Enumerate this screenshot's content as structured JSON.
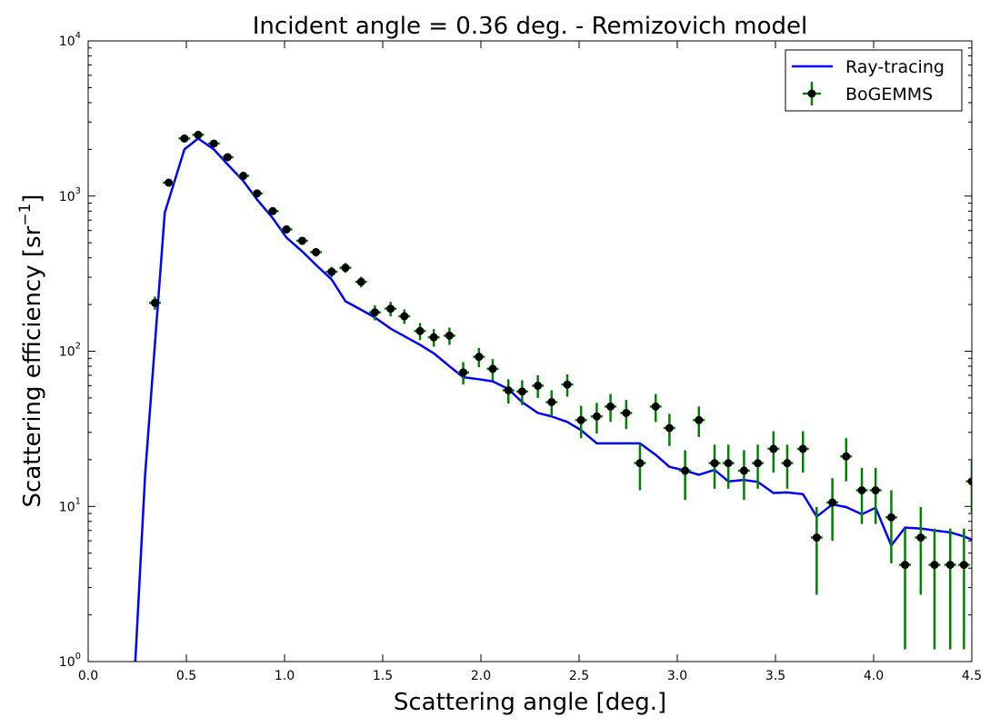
{
  "chart_data": {
    "type": "line",
    "title": "Incident angle = 0.36 deg. - Remizovich model",
    "xlabel": "Scattering angle [deg.]",
    "ylabel": "Scattering efficiency [sr",
    "ylabel_sup": "−1",
    "ylabel_close": "]",
    "xlim": [
      0.0,
      4.5
    ],
    "ylim": [
      1,
      10000
    ],
    "yscale": "log",
    "x_ticks": [
      0.0,
      0.5,
      1.0,
      1.5,
      2.0,
      2.5,
      3.0,
      3.5,
      4.0,
      4.5
    ],
    "x_tick_labels": [
      "0.0",
      "0.5",
      "1.0",
      "1.5",
      "2.0",
      "2.5",
      "3.0",
      "3.5",
      "4.0",
      "4.5"
    ],
    "y_ticks": [
      1,
      10,
      100,
      1000,
      10000
    ],
    "y_tick_base": [
      "10",
      "10",
      "10",
      "10",
      "10"
    ],
    "y_tick_exp": [
      "0",
      "1",
      "2",
      "3",
      "4"
    ],
    "legend_position": "top-right",
    "series": [
      {
        "name": "Ray-tracing",
        "kind": "line",
        "color": "#0000ff",
        "x": [
          0.24,
          0.29,
          0.39,
          0.49,
          0.56,
          0.64,
          0.71,
          0.79,
          0.86,
          0.94,
          1.01,
          1.09,
          1.16,
          1.24,
          1.31,
          1.39,
          1.46,
          1.54,
          1.61,
          1.69,
          1.76,
          1.84,
          1.91,
          1.99,
          2.06,
          2.14,
          2.21,
          2.29,
          2.36,
          2.44,
          2.51,
          2.59,
          2.66,
          2.74,
          2.81,
          2.89,
          2.96,
          3.04,
          3.11,
          3.19,
          3.26,
          3.34,
          3.41,
          3.49,
          3.56,
          3.64,
          3.71,
          3.79,
          3.86,
          3.94,
          4.01,
          4.09,
          4.16,
          4.24,
          4.31,
          4.39,
          4.46,
          4.5
        ],
        "y": [
          1.0,
          16,
          780,
          2000,
          2350,
          2000,
          1600,
          1250,
          950,
          720,
          540,
          440,
          360,
          290,
          210,
          185,
          165,
          140,
          125,
          110,
          97,
          80,
          68,
          66,
          64,
          57,
          47,
          40,
          38,
          35,
          31,
          25.5,
          25.5,
          25.5,
          25.5,
          21.5,
          18,
          17,
          16,
          17.2,
          14.5,
          14.8,
          14.4,
          12.2,
          12.3,
          12.0,
          8.6,
          10.3,
          9.9,
          8.9,
          9.8,
          5.6,
          7.3,
          7.2,
          7.0,
          6.8,
          6.4,
          6.1
        ]
      },
      {
        "name": "BoGEMMS",
        "kind": "errorbar",
        "marker_color": "#000000",
        "errorbar_color": "#008000",
        "x": [
          0.34,
          0.41,
          0.49,
          0.56,
          0.64,
          0.71,
          0.79,
          0.86,
          0.94,
          1.01,
          1.09,
          1.16,
          1.24,
          1.31,
          1.39,
          1.46,
          1.54,
          1.61,
          1.69,
          1.76,
          1.84,
          1.91,
          1.99,
          2.06,
          2.14,
          2.21,
          2.29,
          2.36,
          2.44,
          2.51,
          2.59,
          2.66,
          2.74,
          2.81,
          2.89,
          2.96,
          3.04,
          3.11,
          3.19,
          3.26,
          3.34,
          3.41,
          3.49,
          3.56,
          3.64,
          3.71,
          3.79,
          3.86,
          3.94,
          4.01,
          4.09,
          4.16,
          4.24,
          4.31,
          4.39,
          4.46,
          4.5
        ],
        "y": [
          205,
          1220,
          2350,
          2480,
          2180,
          1780,
          1350,
          1040,
          800,
          610,
          515,
          435,
          325,
          345,
          280,
          178,
          188,
          168,
          135,
          123,
          126,
          73,
          92,
          77,
          56,
          55,
          60,
          47,
          61,
          36,
          38,
          44,
          40,
          19,
          44,
          32,
          17,
          36,
          19,
          19,
          17,
          19,
          23.5,
          19,
          23.5,
          6.3,
          10.6,
          21,
          12.7,
          12.7,
          8.5,
          4.2,
          6.3,
          4.2,
          4.2,
          4.2,
          14.5
        ],
        "y_err": [
          20,
          60,
          100,
          100,
          90,
          80,
          60,
          50,
          40,
          35,
          30,
          28,
          25,
          25,
          22,
          20,
          20,
          18,
          17,
          16,
          16,
          12,
          13,
          12,
          10,
          10,
          10,
          9,
          10,
          8.5,
          8.5,
          9,
          8.5,
          6.3,
          9,
          7.5,
          6,
          8,
          6,
          6,
          6,
          6,
          7,
          6,
          7,
          3.6,
          4.6,
          6.5,
          5,
          5,
          4.2,
          3,
          3.6,
          3,
          3,
          3,
          5.5
        ],
        "x_err": 0.03
      }
    ]
  }
}
